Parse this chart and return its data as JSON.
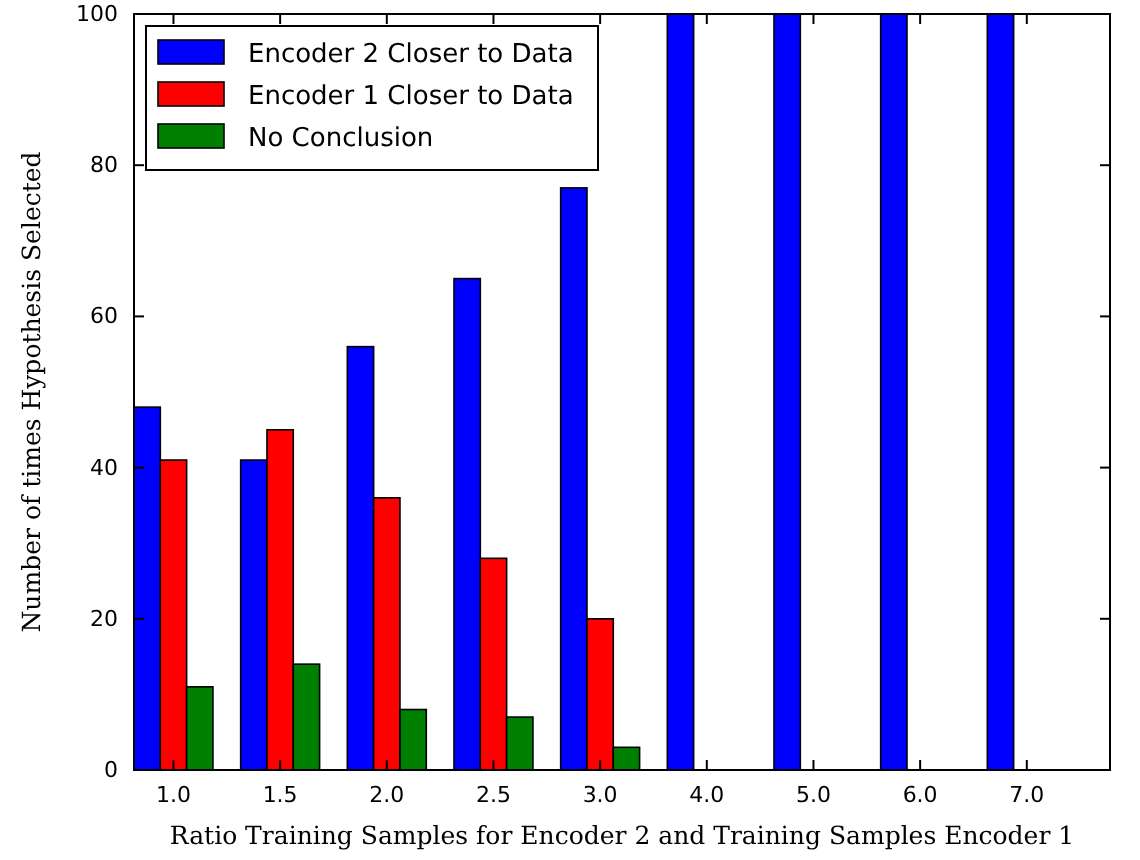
{
  "chart_data": {
    "type": "bar",
    "xlabel": "Ratio Training Samples for Encoder 2 and Training Samples Encoder 1",
    "ylabel": "Number of times Hypothesis Selected",
    "categories": [
      "1.0",
      "1.5",
      "2.0",
      "2.5",
      "3.0",
      "4.0",
      "5.0",
      "6.0",
      "7.0"
    ],
    "series": [
      {
        "name": "Encoder 2 Closer to Data",
        "color": "#0000ff",
        "values": [
          48,
          41,
          56,
          65,
          77,
          100,
          100,
          100,
          100
        ]
      },
      {
        "name": "Encoder 1 Closer to Data",
        "color": "#ff0000",
        "values": [
          41,
          45,
          36,
          28,
          20,
          0,
          0,
          0,
          0
        ]
      },
      {
        "name": "No Conclusion",
        "color": "#008000",
        "values": [
          11,
          14,
          8,
          7,
          3,
          0,
          0,
          0,
          0
        ]
      }
    ],
    "ylim": [
      0,
      100
    ],
    "yticks": [
      0,
      20,
      40,
      60,
      80,
      100
    ],
    "legend": "top left"
  }
}
